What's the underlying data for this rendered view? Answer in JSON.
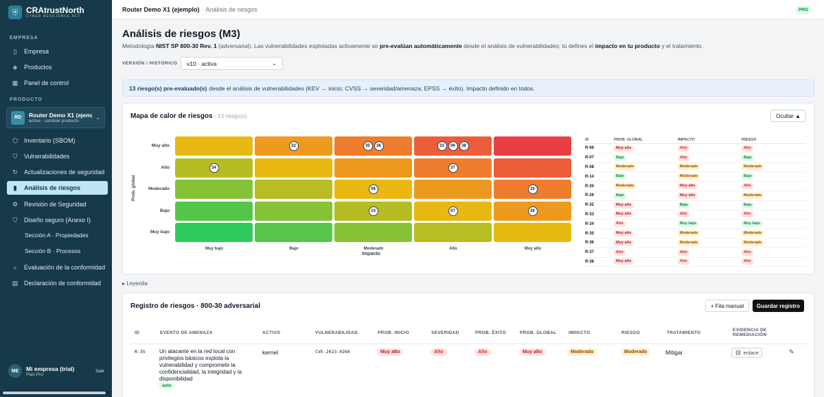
{
  "brand": {
    "name_a": "CRA",
    "name_b": "trustNorth",
    "subtitle": "CYBER RESILIENCE ACT",
    "icon": "shield-logo-icon"
  },
  "sidebar": {
    "section_company": "EMPRESA",
    "company_items": [
      {
        "label": "Empresa",
        "icon": "building-icon"
      },
      {
        "label": "Productos",
        "icon": "layers-icon"
      },
      {
        "label": "Panel de control",
        "icon": "grid-icon"
      }
    ],
    "section_product": "PRODUCTO",
    "product": {
      "initials": "RD",
      "name": "Router Demo X1 (ejemplo)",
      "status": "active · cambiar producto"
    },
    "product_items": [
      {
        "label": "Inventario (SBOM)",
        "icon": "box-icon"
      },
      {
        "label": "Vulnerabilidades",
        "icon": "shield-icon"
      },
      {
        "label": "Actualizaciones de seguridad",
        "icon": "refresh-icon"
      },
      {
        "label": "Análisis de riesgos",
        "icon": "bar-chart-icon"
      },
      {
        "label": "Revisión de Seguridad",
        "icon": "gear-icon"
      },
      {
        "label": "Diseño seguro (Anexo I)",
        "icon": "shield-check-icon"
      },
      {
        "label": "Sección A · Propiedades",
        "icon": ""
      },
      {
        "label": "Sección B · Procesos",
        "icon": ""
      },
      {
        "label": "Evaluación de la conformidad",
        "icon": "search-icon"
      },
      {
        "label": "Declaración de conformidad",
        "icon": "document-icon"
      }
    ],
    "user": {
      "initials": "ME",
      "name": "Mi empresa (trial)",
      "plan": "Plan Pro",
      "logout": "Salir"
    }
  },
  "topbar": {
    "crumb_main": "Router Demo X1 (ejemplo)",
    "separator": "·",
    "crumb_sub": "Análisis de riesgos",
    "badge": "PRO"
  },
  "page": {
    "title": "Análisis de riesgos (M3)",
    "desc_1": "Metodología ",
    "desc_2": "NIST SP 800-30 Rev. 1",
    "desc_3": " (adversarial). Las vulnerabilidades explotadas activamente se ",
    "desc_4": "pre-evalúan automáticamente",
    "desc_5": " desde el análisis de vulnerabilidades; tú defines el ",
    "desc_6": "impacto en tu producto",
    "desc_7": " y el tratamiento.",
    "version_label": "VERSIÓN / HISTÓRICO",
    "version_value": "v10 · activa",
    "banner_bold": "13 riesgo(s) pre-evaluado(s)",
    "banner_text": "desde el análisis de vulnerabilidades (KEV → inicio; CVSS → severidad/amenaza; EPSS → éxito). Impacto definido en todos.",
    "legend_toggle": "▸ Leyenda"
  },
  "heatmap": {
    "title": "Mapa de calor de riesgos",
    "count": "· 13 riesgo(s)",
    "hide_button": "Ocultar ▲",
    "y_axis_label": "Prob. global",
    "x_axis_label": "Impacto",
    "rows": [
      "Muy alto",
      "Alto",
      "Moderado",
      "Bajo",
      "Muy bajo"
    ],
    "cols": [
      "Muy bajo",
      "Bajo",
      "Moderado",
      "Alto",
      "Muy alto"
    ],
    "colors": [
      [
        "#e9b812",
        "#ee9a1f",
        "#ee7d2e",
        "#ed5d39",
        "#ea3e45"
      ],
      [
        "#b6bd22",
        "#ebb812",
        "#ee9a1f",
        "#ee7d2e",
        "#ed5d39"
      ],
      [
        "#86c236",
        "#b7bd22",
        "#ebb812",
        "#ee9a1f",
        "#ee7d2e"
      ],
      [
        "#56c64a",
        "#86c236",
        "#b6bd22",
        "#e9b812",
        "#ee9a1f"
      ],
      [
        "#2ecb5c",
        "#57c64a",
        "#86c236",
        "#b7bd22",
        "#e5bb13"
      ]
    ],
    "bubbles": [
      [
        [],
        [
          "32"
        ],
        [
          "35",
          "36"
        ],
        [
          "33",
          "06",
          "38"
        ],
        []
      ],
      [
        [
          "34"
        ],
        [],
        [],
        [
          "37"
        ],
        []
      ],
      [
        [],
        [],
        [
          "08"
        ],
        [],
        [
          "20"
        ]
      ],
      [
        [],
        [],
        [
          "14"
        ],
        [
          "07"
        ],
        [
          "26"
        ]
      ],
      [
        [],
        [],
        [],
        [],
        []
      ]
    ],
    "table_headers": [
      "ID",
      "PROB. GLOBAL",
      "IMPACTO",
      "RIESGO"
    ],
    "table_rows": [
      [
        "R-06",
        "Muy alto",
        "Alto",
        "Alto"
      ],
      [
        "R-07",
        "Bajo",
        "Alto",
        "Bajo"
      ],
      [
        "R-08",
        "Moderado",
        "Moderado",
        "Moderado"
      ],
      [
        "R-14",
        "Bajo",
        "Moderado",
        "Bajo"
      ],
      [
        "R-20",
        "Moderado",
        "Muy alto",
        "Alto"
      ],
      [
        "R-26",
        "Bajo",
        "Muy alto",
        "Moderado"
      ],
      [
        "R-32",
        "Muy alto",
        "Bajo",
        "Bajo"
      ],
      [
        "R-33",
        "Muy alto",
        "Alto",
        "Alto"
      ],
      [
        "R-34",
        "Alto",
        "Muy bajo",
        "Muy bajo"
      ],
      [
        "R-35",
        "Muy alto",
        "Moderado",
        "Moderado"
      ],
      [
        "R-36",
        "Muy alto",
        "Moderado",
        "Moderado"
      ],
      [
        "R-37",
        "Alto",
        "Alto",
        "Alto"
      ],
      [
        "R-38",
        "Muy alto",
        "Alto",
        "Alto"
      ]
    ]
  },
  "register": {
    "title": "Registro de riesgos · 800-30 adversarial",
    "add_row": "+ Fila manual",
    "save": "Guardar registro",
    "headers": [
      "ID",
      "EVENTO DE AMENAZA",
      "ACTIVO",
      "VULNERABILIDAD",
      "PROB. INICIO",
      "SEVERIDAD",
      "PROB. ÉXITO",
      "PROB. GLOBAL",
      "IMPACTO",
      "RIESGO",
      "TRATAMIENTO",
      "EVIDENCIA DE",
      "REMEDIACIÓN"
    ],
    "row": {
      "id": "R-35",
      "event": "Un atacante en la red local con privilegios básicos explota la vulnerabilidad y compromete la confidencialidad, la integridad y la disponibilidad",
      "auto": "auto",
      "asset": "kernel",
      "vuln": "CVE-2023-0266",
      "prob_inicio": "Muy alto",
      "severidad": "Alto",
      "prob_exito": "Alto",
      "prob_global": "Muy alto",
      "impacto": "Moderado",
      "riesgo": "Moderado",
      "tratamiento": "Mitigar",
      "evidence_link": "enlace"
    }
  }
}
